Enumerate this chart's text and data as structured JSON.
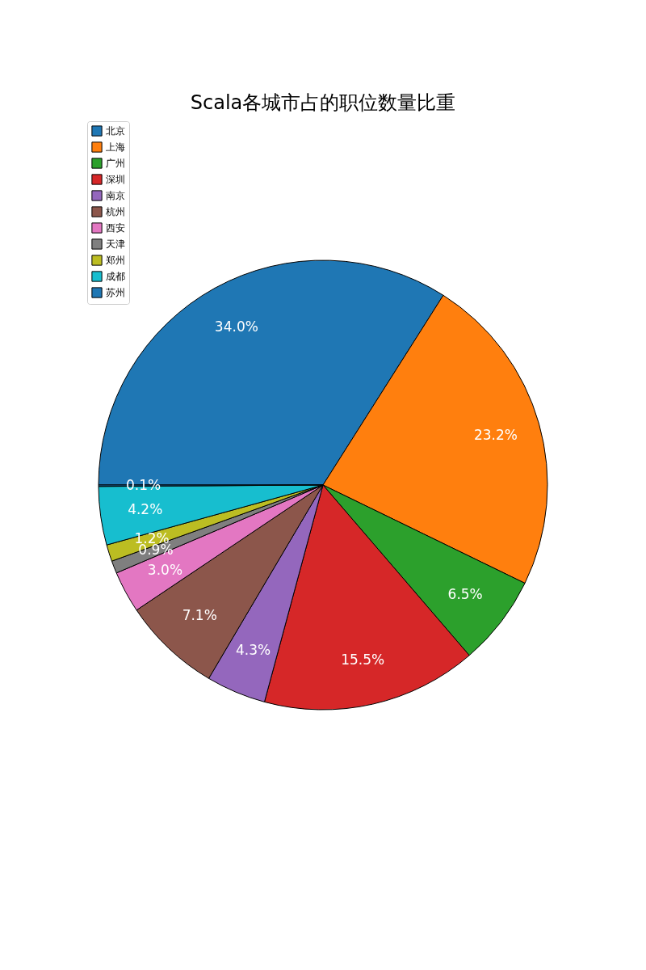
{
  "chart_data": {
    "type": "pie",
    "title": "Scala各城市占的职位数量比重",
    "categories": [
      "北京",
      "上海",
      "广州",
      "深圳",
      "南京",
      "杭州",
      "西安",
      "天津",
      "郑州",
      "成都",
      "苏州"
    ],
    "values": [
      34.0,
      23.2,
      6.5,
      15.5,
      4.3,
      7.1,
      3.0,
      0.9,
      1.2,
      4.2,
      0.1
    ],
    "value_labels": [
      "34.0%",
      "23.2%",
      "6.5%",
      "15.5%",
      "4.3%",
      "7.1%",
      "3.0%",
      "0.9%",
      "1.2%",
      "4.2%",
      "0.1%"
    ],
    "colors": [
      "#1f77b4",
      "#ff7f0e",
      "#2ca02c",
      "#d62728",
      "#9467bd",
      "#8c564b",
      "#e377c2",
      "#7f7f7f",
      "#bcbd22",
      "#17becf",
      "#1f77b4"
    ],
    "legend": "top left"
  }
}
